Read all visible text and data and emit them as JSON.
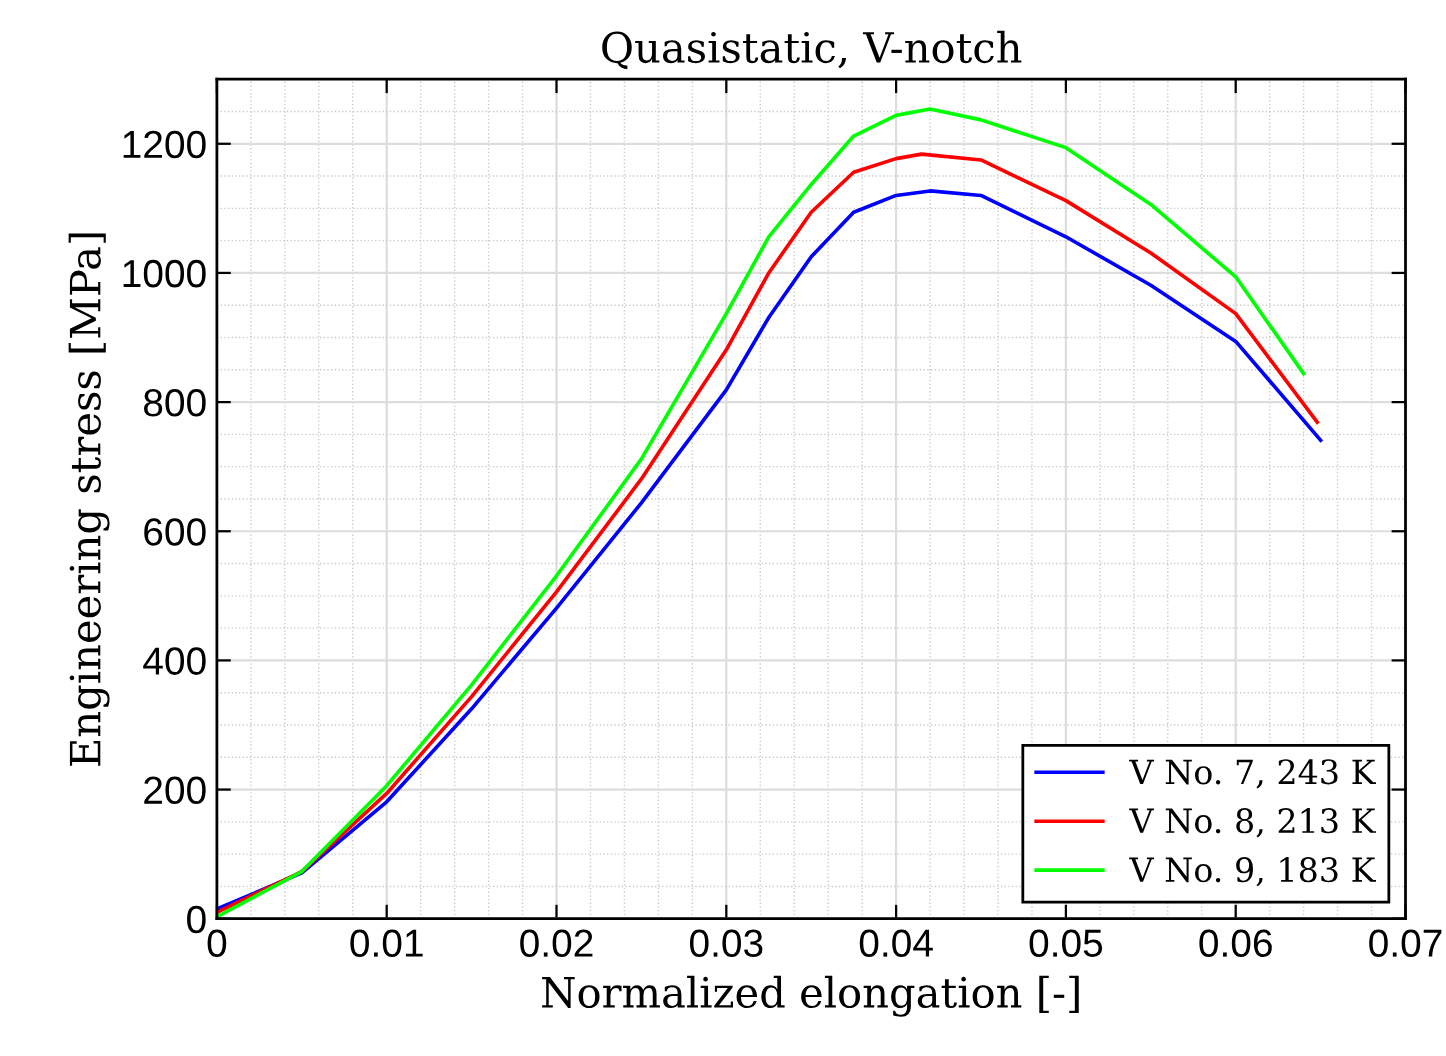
{
  "chart_data": {
    "type": "line",
    "title": "Quasistatic, V-notch",
    "xlabel": "Normalized elongation [-]",
    "ylabel": "Engineering stress [MPa]",
    "xlim": [
      0,
      0.07
    ],
    "xticks": [
      0,
      0.01,
      0.02,
      0.03,
      0.04,
      0.05,
      0.06,
      0.07
    ],
    "ylim": [
      0,
      1300
    ],
    "yticks": [
      0,
      200,
      400,
      600,
      800,
      1000,
      1200
    ],
    "grid": true,
    "legend": "bottom right",
    "line_style": "solid",
    "marker": "none",
    "series": [
      {
        "name": "V No. 7, 243 K",
        "color": "#0000ff",
        "x": [
          0,
          0.005,
          0.01,
          0.015,
          0.02,
          0.025,
          0.03,
          0.0325,
          0.035,
          0.0375,
          0.04,
          0.042,
          0.045,
          0.05,
          0.055,
          0.06,
          0.065
        ],
        "values": [
          15,
          71,
          181,
          325,
          481,
          644,
          819,
          931,
          1025,
          1094,
          1120,
          1127,
          1120,
          1056,
          981,
          894,
          741
        ]
      },
      {
        "name": "V No. 8, 213 K",
        "color": "#ff0000",
        "x": [
          0,
          0.005,
          0.01,
          0.015,
          0.02,
          0.025,
          0.03,
          0.0325,
          0.035,
          0.0375,
          0.04,
          0.0415,
          0.045,
          0.05,
          0.055,
          0.06,
          0.0648
        ],
        "values": [
          10,
          73,
          194,
          344,
          506,
          681,
          881,
          1000,
          1094,
          1156,
          1177,
          1184,
          1175,
          1112,
          1031,
          937,
          769
        ]
      },
      {
        "name": "V No. 9, 183 K",
        "color": "#00ff00",
        "x": [
          0,
          0.005,
          0.01,
          0.015,
          0.02,
          0.025,
          0.03,
          0.0325,
          0.035,
          0.0375,
          0.04,
          0.042,
          0.045,
          0.05,
          0.055,
          0.06,
          0.064
        ],
        "values": [
          3,
          73,
          206,
          362,
          531,
          712,
          937,
          1056,
          1137,
          1212,
          1244,
          1254,
          1237,
          1194,
          1106,
          994,
          844
        ]
      }
    ]
  }
}
